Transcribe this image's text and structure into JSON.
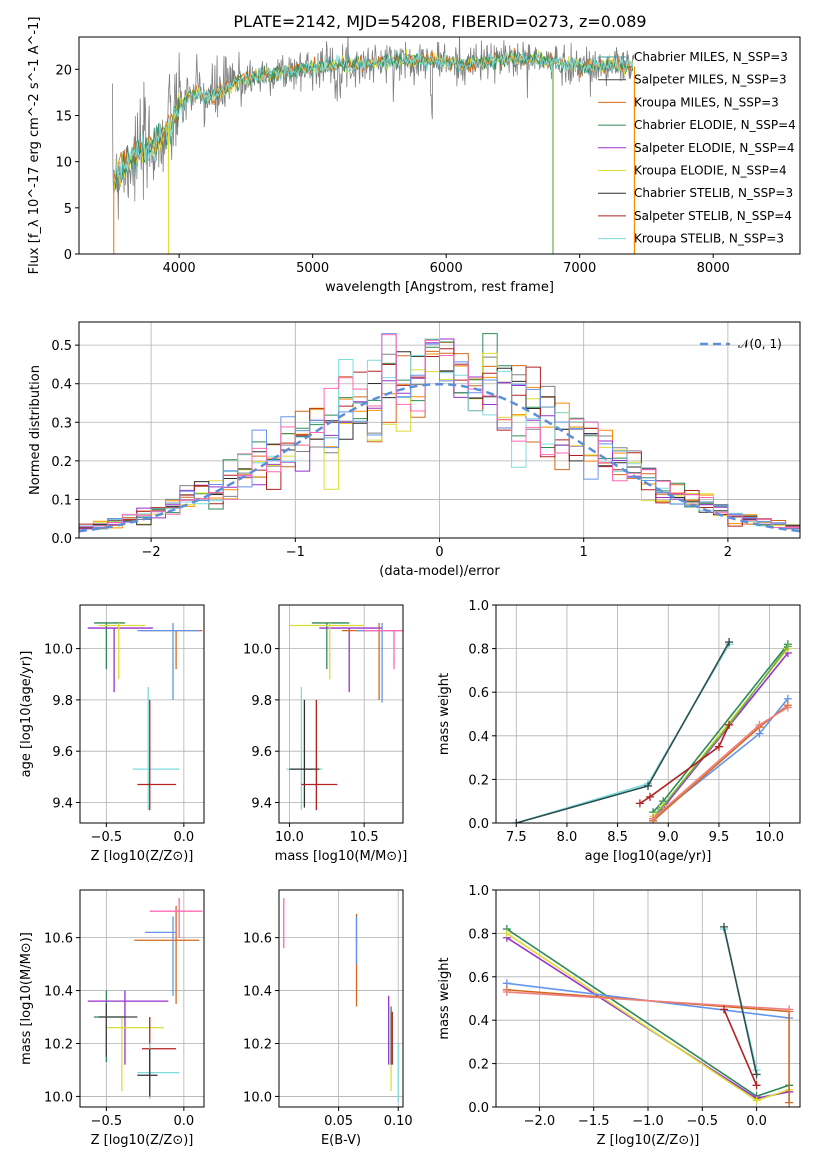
{
  "title": "PLATE=2142, MJD=54208, FIBERID=0273, z=0.089",
  "colors": [
    "#808080",
    "#ff8c00",
    "#d2691e",
    "#2e8b57",
    "#9932cc",
    "#dddd33",
    "#2f2f2f",
    "#b22222",
    "#7fdcdc",
    "#6495ed",
    "#ff69b4",
    "#6ab04c"
  ],
  "chart_data": [
    {
      "id": "spectrum",
      "type": "line",
      "xlabel": "wavelength [Angstrom, rest frame]",
      "ylabel": "Flux [f_λ 10^-17 erg cm^-2 s^-1 A^-1]",
      "xlim": [
        3250,
        8650
      ],
      "ylim": [
        0,
        23.5
      ],
      "xticks": [
        4000,
        5000,
        6000,
        7000,
        8000
      ],
      "yticks": [
        0,
        5,
        10,
        15,
        20
      ],
      "grid": false,
      "legend_position": "right",
      "legend": [
        {
          "label": "Chabrier MILES, N_SSP=3",
          "color": "#4a9d9d"
        },
        {
          "label": "Salpeter MILES, N_SSP=3",
          "color": "#444444"
        },
        {
          "label": "Kroupa MILES, N_SSP=3",
          "color": "#d2691e"
        },
        {
          "label": "Chabrier ELODIE, N_SSP=4",
          "color": "#2e8b57"
        },
        {
          "label": "Salpeter ELODIE, N_SSP=4",
          "color": "#9932cc"
        },
        {
          "label": "Kroupa ELODIE, N_SSP=4",
          "color": "#dddd33"
        },
        {
          "label": "Chabrier STELIB, N_SSP=3",
          "color": "#2f2f2f"
        },
        {
          "label": "Salpeter STELIB, N_SSP=4",
          "color": "#b22222"
        },
        {
          "label": "Kroupa STELIB, N_SSP=3",
          "color": "#7fdcdc"
        }
      ],
      "continuum": [
        [
          3500,
          8.5
        ],
        [
          3600,
          9.5
        ],
        [
          3700,
          11
        ],
        [
          3800,
          11.5
        ],
        [
          3900,
          13
        ],
        [
          4000,
          16
        ],
        [
          4100,
          17.5
        ],
        [
          4200,
          17
        ],
        [
          4300,
          17.5
        ],
        [
          4400,
          18.5
        ],
        [
          4500,
          19
        ],
        [
          4700,
          19.5
        ],
        [
          4900,
          20
        ],
        [
          5100,
          20.5
        ],
        [
          5300,
          20.5
        ],
        [
          5500,
          20.8
        ],
        [
          5700,
          21
        ],
        [
          5900,
          21
        ],
        [
          6100,
          20.5
        ],
        [
          6300,
          20.8
        ],
        [
          6500,
          21.2
        ],
        [
          6700,
          21
        ],
        [
          6900,
          20.5
        ],
        [
          7100,
          20.3
        ],
        [
          7300,
          20.5
        ],
        [
          7410,
          20.3
        ]
      ]
    },
    {
      "id": "residuals",
      "type": "line",
      "xlabel": "(data-model)/error",
      "ylabel": "Normed distribution",
      "xlim": [
        -2.5,
        2.5
      ],
      "ylim": [
        0,
        0.56
      ],
      "xticks": [
        -2,
        -1,
        0,
        1,
        2
      ],
      "yticks": [
        0.0,
        0.1,
        0.2,
        0.3,
        0.4,
        0.5
      ],
      "grid": true,
      "legend_position": "top-right",
      "legend": [
        {
          "label": "𝒩(0, 1)",
          "color": "#5b8fd8"
        }
      ]
    },
    {
      "id": "age-vs-Z",
      "type": "scatter",
      "xlabel": "Z [log10(Z/Z⊙)]",
      "ylabel": "age [log10(age/yr)]",
      "xlim": [
        -0.67,
        0.13
      ],
      "ylim": [
        9.32,
        10.17
      ],
      "xticks": [
        -0.5,
        0.0
      ],
      "yticks": [
        9.4,
        9.6,
        9.8,
        10.0
      ],
      "grid": true,
      "crosses": [
        {
          "x": -0.5,
          "y": 10.1,
          "x0": -0.58,
          "x1": -0.38,
          "y0": 9.92,
          "y1": 10.1,
          "c": "#2e8b57"
        },
        {
          "x": -0.45,
          "y": 10.08,
          "x0": -0.62,
          "x1": -0.2,
          "y0": 9.83,
          "y1": 10.08,
          "c": "#9932cc"
        },
        {
          "x": -0.42,
          "y": 10.09,
          "x0": -0.55,
          "x1": -0.25,
          "y0": 9.88,
          "y1": 10.1,
          "c": "#dddd33"
        },
        {
          "x": -0.05,
          "y": 10.07,
          "x0": -0.28,
          "x1": 0.12,
          "y0": 9.92,
          "y1": 10.07,
          "c": "#d2691e"
        },
        {
          "x": -0.07,
          "y": 10.07,
          "x0": -0.3,
          "x1": 0.1,
          "y0": 9.8,
          "y1": 10.1,
          "c": "#6495ed"
        },
        {
          "x": -0.23,
          "y": 9.53,
          "x0": -0.33,
          "x1": -0.03,
          "y0": 9.37,
          "y1": 9.85,
          "c": "#7fdcdc"
        },
        {
          "x": -0.22,
          "y": 9.47,
          "x0": -0.3,
          "x1": -0.05,
          "y0": 9.37,
          "y1": 9.8,
          "c": "#b22222"
        }
      ]
    },
    {
      "id": "age-vs-mass",
      "type": "scatter",
      "xlabel": "mass [log10(M/M⊙)]",
      "ylabel": "",
      "xlim": [
        9.93,
        10.76
      ],
      "ylim": [
        9.32,
        10.17
      ],
      "xticks": [
        10.0,
        10.5
      ],
      "yticks": [
        9.4,
        9.6,
        9.8,
        10.0
      ],
      "grid": true,
      "crosses": [
        {
          "x": 10.25,
          "y": 10.1,
          "x0": 10.15,
          "x1": 10.4,
          "y0": 9.92,
          "y1": 10.1,
          "c": "#2e8b57"
        },
        {
          "x": 10.4,
          "y": 10.08,
          "x0": 10.2,
          "x1": 10.62,
          "y0": 9.83,
          "y1": 10.08,
          "c": "#9932cc"
        },
        {
          "x": 10.27,
          "y": 10.09,
          "x0": 10.0,
          "x1": 10.5,
          "y0": 9.88,
          "y1": 10.1,
          "c": "#dddd33"
        },
        {
          "x": 10.6,
          "y": 10.07,
          "x0": 10.35,
          "x1": 10.73,
          "y0": 9.8,
          "y1": 10.1,
          "c": "#d2691e"
        },
        {
          "x": 10.62,
          "y": 10.07,
          "x0": 10.45,
          "x1": 10.75,
          "y0": 9.79,
          "y1": 10.1,
          "c": "#6495ed"
        },
        {
          "x": 10.7,
          "y": 10.07,
          "x0": 10.5,
          "x1": 10.76,
          "y0": 9.92,
          "y1": 10.07,
          "c": "#ff69b4"
        },
        {
          "x": 10.08,
          "y": 9.53,
          "x0": 9.98,
          "x1": 10.22,
          "y0": 9.37,
          "y1": 9.85,
          "c": "#7fdcdc"
        },
        {
          "x": 10.1,
          "y": 9.53,
          "x0": 10.0,
          "x1": 10.2,
          "y0": 9.38,
          "y1": 9.8,
          "c": "#2f2f2f"
        },
        {
          "x": 10.18,
          "y": 9.47,
          "x0": 10.08,
          "x1": 10.32,
          "y0": 9.37,
          "y1": 9.8,
          "c": "#b22222"
        }
      ]
    },
    {
      "id": "weight-vs-age",
      "type": "line",
      "xlabel": "age [log10(age/yr)]",
      "ylabel": "mass weight",
      "xlim": [
        7.3,
        10.3
      ],
      "ylim": [
        0,
        1.0
      ],
      "xticks": [
        7.5,
        8.0,
        8.5,
        9.0,
        9.5,
        10.0
      ],
      "yticks": [
        0.0,
        0.2,
        0.4,
        0.6,
        0.8,
        1.0
      ],
      "grid": true,
      "series": [
        {
          "c": "#7fdcdc",
          "x": [
            7.5,
            8.8,
            9.6
          ],
          "y": [
            0.0,
            0.18,
            0.82
          ]
        },
        {
          "c": "#2f4f4f",
          "x": [
            7.5,
            8.8,
            9.6
          ],
          "y": [
            0.0,
            0.17,
            0.83
          ]
        },
        {
          "c": "#2e8b57",
          "x": [
            8.85,
            8.95,
            10.18
          ],
          "y": [
            0.05,
            0.1,
            0.82
          ]
        },
        {
          "c": "#9932cc",
          "x": [
            8.85,
            8.95,
            10.18
          ],
          "y": [
            0.02,
            0.07,
            0.78
          ]
        },
        {
          "c": "#dddd33",
          "x": [
            8.85,
            8.95,
            10.18
          ],
          "y": [
            0.03,
            0.08,
            0.8
          ]
        },
        {
          "c": "#6ab04c",
          "x": [
            8.9,
            9.6,
            10.18
          ],
          "y": [
            0.05,
            0.45,
            0.81
          ]
        },
        {
          "c": "#b22222",
          "x": [
            8.72,
            8.82,
            9.5,
            9.6
          ],
          "y": [
            0.09,
            0.12,
            0.35,
            0.45
          ]
        },
        {
          "c": "#6495ed",
          "x": [
            8.85,
            9.9,
            10.18
          ],
          "y": [
            0.02,
            0.41,
            0.57
          ]
        },
        {
          "c": "#d2691e",
          "x": [
            8.85,
            9.9,
            10.18
          ],
          "y": [
            0.01,
            0.44,
            0.54
          ]
        },
        {
          "c": "#f08080",
          "x": [
            8.85,
            9.9,
            10.18
          ],
          "y": [
            0.02,
            0.45,
            0.53
          ]
        }
      ]
    },
    {
      "id": "mass-vs-Z",
      "type": "scatter",
      "xlabel": "Z [log10(Z/Z⊙)]",
      "ylabel": "mass [log10(M/M⊙)]",
      "xlim": [
        -0.67,
        0.13
      ],
      "ylim": [
        9.96,
        10.78
      ],
      "xticks": [
        -0.5,
        0.0
      ],
      "yticks": [
        10.0,
        10.2,
        10.4,
        10.6
      ],
      "grid": true,
      "crosses": [
        {
          "x": -0.5,
          "y": 10.3,
          "x0": -0.58,
          "x1": -0.38,
          "y0": 10.13,
          "y1": 10.4,
          "c": "#2e8b57"
        },
        {
          "x": -0.38,
          "y": 10.36,
          "x0": -0.62,
          "x1": -0.1,
          "y0": 10.12,
          "y1": 10.4,
          "c": "#9932cc"
        },
        {
          "x": -0.4,
          "y": 10.26,
          "x0": -0.5,
          "x1": -0.13,
          "y0": 10.02,
          "y1": 10.3,
          "c": "#dddd33"
        },
        {
          "x": -0.5,
          "y": 10.3,
          "x0": -0.55,
          "x1": -0.3,
          "y0": 10.15,
          "y1": 10.35,
          "c": "#444444"
        },
        {
          "x": -0.05,
          "y": 10.59,
          "x0": -0.32,
          "x1": 0.1,
          "y0": 10.35,
          "y1": 10.72,
          "c": "#d2691e"
        },
        {
          "x": -0.07,
          "y": 10.62,
          "x0": -0.25,
          "x1": -0.05,
          "y0": 10.38,
          "y1": 10.68,
          "c": "#6495ed"
        },
        {
          "x": -0.03,
          "y": 10.7,
          "x0": -0.22,
          "x1": 0.12,
          "y0": 10.6,
          "y1": 10.75,
          "c": "#ff69b4"
        },
        {
          "x": -0.22,
          "y": 10.18,
          "x0": -0.27,
          "x1": -0.05,
          "y0": 10.05,
          "y1": 10.3,
          "c": "#b22222"
        },
        {
          "x": -0.22,
          "y": 10.09,
          "x0": -0.3,
          "x1": -0.03,
          "y0": 9.99,
          "y1": 10.2,
          "c": "#7fdcdc"
        },
        {
          "x": -0.22,
          "y": 10.08,
          "x0": -0.3,
          "x1": -0.17,
          "y0": 10.0,
          "y1": 10.18,
          "c": "#2f2f2f"
        }
      ]
    },
    {
      "id": "mass-vs-EBV",
      "type": "scatter",
      "xlabel": "E(B-V)",
      "ylabel": "",
      "xlim": [
        0.0,
        0.104
      ],
      "ylim": [
        9.96,
        10.78
      ],
      "xticks": [
        0.05,
        0.1
      ],
      "yticks": [
        10.0,
        10.2,
        10.4,
        10.6
      ],
      "grid": true,
      "crosses": [
        {
          "x": 0.004,
          "y": 10.65,
          "x0": 0.004,
          "x1": 0.004,
          "y0": 10.56,
          "y1": 10.75,
          "c": "#ff69b4"
        },
        {
          "x": 0.065,
          "y": 10.59,
          "x0": 0.065,
          "x1": 0.065,
          "y0": 10.34,
          "y1": 10.69,
          "c": "#d2691e"
        },
        {
          "x": 0.065,
          "y": 10.62,
          "x0": 0.065,
          "x1": 0.065,
          "y0": 10.5,
          "y1": 10.68,
          "c": "#6495ed"
        },
        {
          "x": 0.092,
          "y": 10.3,
          "x0": 0.092,
          "x1": 0.092,
          "y0": 10.12,
          "y1": 10.38,
          "c": "#9932cc"
        },
        {
          "x": 0.094,
          "y": 10.26,
          "x0": 0.094,
          "x1": 0.094,
          "y0": 10.02,
          "y1": 10.3,
          "c": "#dddd33"
        },
        {
          "x": 0.094,
          "y": 10.22,
          "x0": 0.094,
          "x1": 0.094,
          "y0": 10.12,
          "y1": 10.34,
          "c": "#2e8b57"
        },
        {
          "x": 0.095,
          "y": 10.22,
          "x0": 0.095,
          "x1": 0.095,
          "y0": 10.12,
          "y1": 10.32,
          "c": "#b22222"
        },
        {
          "x": 0.1,
          "y": 10.1,
          "x0": 0.1,
          "x1": 0.1,
          "y0": 9.98,
          "y1": 10.2,
          "c": "#7fdcdc"
        }
      ]
    },
    {
      "id": "weight-vs-Z",
      "type": "line",
      "xlabel": "Z [log10(Z/Z⊙)]",
      "ylabel": "mass weight",
      "xlim": [
        -2.4,
        0.4
      ],
      "ylim": [
        0,
        1.0
      ],
      "xticks": [
        -2.0,
        -1.5,
        -1.0,
        -0.5,
        0.0
      ],
      "yticks": [
        0.0,
        0.2,
        0.4,
        0.6,
        0.8,
        1.0
      ],
      "grid": true,
      "series": [
        {
          "c": "#2e8b57",
          "x": [
            -2.3,
            0.0,
            0.3
          ],
          "y": [
            0.82,
            0.05,
            0.1
          ]
        },
        {
          "c": "#9932cc",
          "x": [
            -2.3,
            0.0,
            0.3
          ],
          "y": [
            0.78,
            0.04,
            0.07
          ]
        },
        {
          "c": "#dddd33",
          "x": [
            -2.3,
            0.0,
            0.3
          ],
          "y": [
            0.8,
            0.03,
            0.08
          ]
        },
        {
          "c": "#6495ed",
          "x": [
            -2.3,
            0.3
          ],
          "y": [
            0.57,
            0.41
          ]
        },
        {
          "c": "#d2691e",
          "x": [
            -2.3,
            0.3,
            0.3
          ],
          "y": [
            0.54,
            0.44,
            0.02
          ]
        },
        {
          "c": "#f08080",
          "x": [
            -2.3,
            0.3
          ],
          "y": [
            0.53,
            0.45
          ]
        },
        {
          "c": "#7fdcdc",
          "x": [
            -0.3,
            0.0
          ],
          "y": [
            0.82,
            0.17
          ]
        },
        {
          "c": "#2f4f4f",
          "x": [
            -0.3,
            0.0
          ],
          "y": [
            0.83,
            0.15
          ]
        },
        {
          "c": "#b22222",
          "x": [
            -0.3,
            0.0
          ],
          "y": [
            0.45,
            0.1
          ]
        }
      ]
    }
  ]
}
